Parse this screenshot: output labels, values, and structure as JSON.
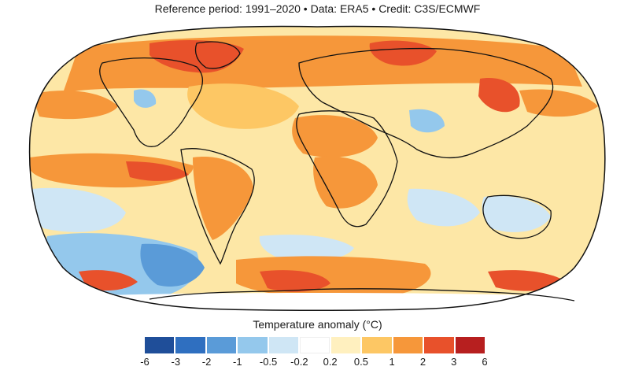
{
  "header": {
    "credit_line": "Reference period: 1991–2020 • Data: ERA5 • Credit: C3S/ECMWF"
  },
  "legend": {
    "title": "Temperature anomaly (°C)",
    "ticks": [
      "-6",
      "-3",
      "-2",
      "-1",
      "-0.5",
      "-0.2",
      "0.2",
      "0.5",
      "1",
      "2",
      "3",
      "6"
    ],
    "colors": [
      "#1f4e99",
      "#2f6fc0",
      "#5a9bd8",
      "#94c8ec",
      "#cfe6f5",
      "#ffffff",
      "#fff0bf",
      "#fdc764",
      "#f6973a",
      "#e8512b",
      "#b71f1f"
    ]
  },
  "map_colors": {
    "ocean_base": "#fde7a6",
    "warm_light": "#fdc764",
    "warm_mid": "#f6973a",
    "warm_strong": "#e8512b",
    "warm_extreme": "#b71f1f",
    "cool_light": "#cfe6f5",
    "cool_mid": "#94c8ec",
    "cool_strong": "#5a9bd8",
    "neutral": "#ffffff",
    "coastline": "#111111"
  }
}
